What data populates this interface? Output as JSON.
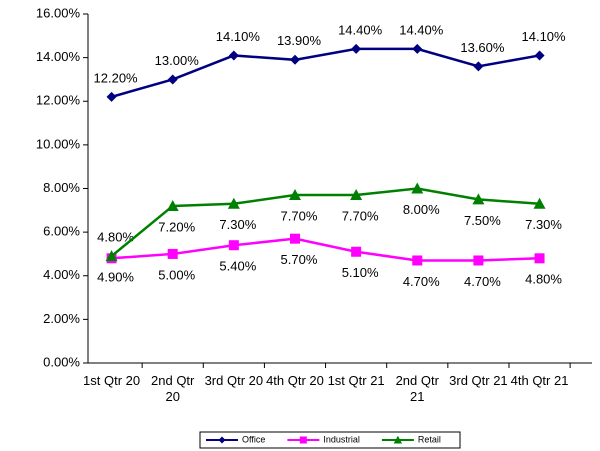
{
  "chart_data": {
    "type": "line",
    "categories": [
      "1st Qtr 20",
      "2nd Qtr 20",
      "3rd Qtr 20",
      "4th Qtr 20",
      "1st Qtr 21",
      "2nd Qtr 21",
      "3rd Qtr 21",
      "4th Qtr 21"
    ],
    "series": [
      {
        "name": "Office",
        "color": "#000080",
        "marker": "diamond",
        "values": [
          12.2,
          13.0,
          14.1,
          13.9,
          14.4,
          14.4,
          13.6,
          14.1
        ],
        "value_labels": [
          "12.20%",
          "13.00%",
          "14.10%",
          "13.90%",
          "14.40%",
          "14.40%",
          "13.60%",
          "14.10%"
        ]
      },
      {
        "name": "Industrial",
        "color": "#ff00ff",
        "marker": "square",
        "values": [
          4.8,
          5.0,
          5.4,
          5.7,
          5.1,
          4.7,
          4.7,
          4.8
        ],
        "value_labels": [
          "4.80%",
          "5.00%",
          "5.40%",
          "5.70%",
          "5.10%",
          "4.70%",
          "4.70%",
          "4.80%"
        ]
      },
      {
        "name": "Retail",
        "color": "#008000",
        "marker": "triangle",
        "values": [
          4.9,
          7.2,
          7.3,
          7.7,
          7.7,
          8.0,
          7.5,
          7.3
        ],
        "value_labels": [
          "4.90%",
          "7.20%",
          "7.30%",
          "7.70%",
          "7.70%",
          "8.00%",
          "7.50%",
          "7.30%"
        ]
      }
    ],
    "ylim": [
      0,
      16
    ],
    "yticks": [
      {
        "value": 0,
        "label": "0.00%"
      },
      {
        "value": 2,
        "label": "2.00%"
      },
      {
        "value": 4,
        "label": "4.00%"
      },
      {
        "value": 6,
        "label": "6.00%"
      },
      {
        "value": 8,
        "label": "8.00%"
      },
      {
        "value": 10,
        "label": "10.00%"
      },
      {
        "value": 12,
        "label": "12.00%"
      },
      {
        "value": 14,
        "label": "14.00%"
      },
      {
        "value": 16,
        "label": "16.00%"
      }
    ],
    "grid": false,
    "legend": "bottom"
  }
}
